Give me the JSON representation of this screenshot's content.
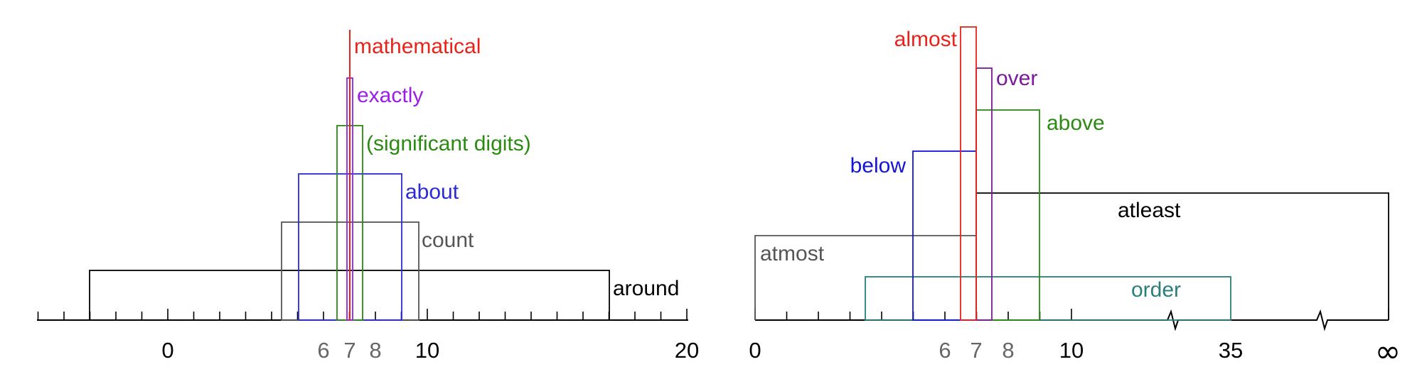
{
  "left_diagram": {
    "ticks_major": [
      {
        "text": "0",
        "color": "#000000"
      },
      {
        "text": "6",
        "color": "#666666"
      },
      {
        "text": "7",
        "color": "#666666"
      },
      {
        "text": "8",
        "color": "#666666"
      },
      {
        "text": "10",
        "color": "#000000"
      },
      {
        "text": "20",
        "color": "#000000"
      }
    ],
    "intervals": [
      {
        "label": "mathematical",
        "color": "#e8231a"
      },
      {
        "label": "exactly",
        "color": "#9a1ee6"
      },
      {
        "label": "(significant digits)",
        "color": "#2a8a12"
      },
      {
        "label": "about",
        "color": "#2a2ad8"
      },
      {
        "label": "count",
        "color": "#555555"
      },
      {
        "label": "around",
        "color": "#000000"
      }
    ]
  },
  "right_diagram": {
    "ticks_major": [
      {
        "text": "0",
        "color": "#000000"
      },
      {
        "text": "6",
        "color": "#666666"
      },
      {
        "text": "7",
        "color": "#666666"
      },
      {
        "text": "8",
        "color": "#666666"
      },
      {
        "text": "10",
        "color": "#000000"
      },
      {
        "text": "35",
        "color": "#000000"
      },
      {
        "text": "∞",
        "color": "#000000"
      }
    ],
    "intervals": [
      {
        "label": "almost",
        "color": "#e8231a"
      },
      {
        "label": "over",
        "color": "#7a1a9a"
      },
      {
        "label": "above",
        "color": "#2a8a12"
      },
      {
        "label": "below",
        "color": "#1414d8"
      },
      {
        "label": "atleast",
        "color": "#000000"
      },
      {
        "label": "atmost",
        "color": "#555555"
      },
      {
        "label": "order",
        "color": "#2a7f7a"
      }
    ]
  }
}
